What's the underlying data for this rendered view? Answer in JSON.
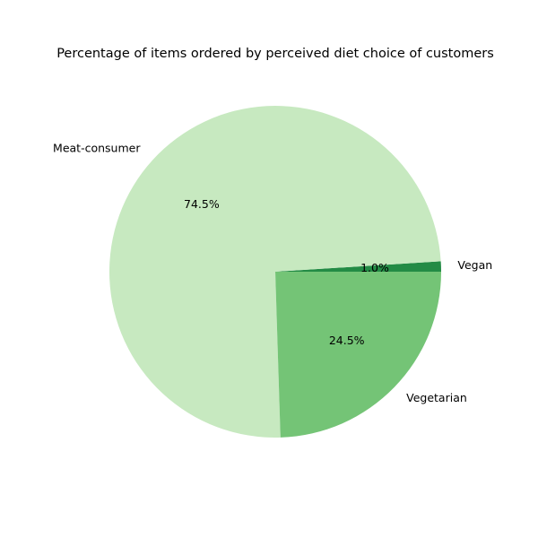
{
  "chart_data": {
    "type": "pie",
    "title": "Percentage of items ordered by perceived diet choice of customers",
    "start_angle_deg": 0,
    "direction": "counterclockwise",
    "slices": [
      {
        "label": "Vegan",
        "value": 1.0,
        "pct_label": "1.0%",
        "color": "#238b45"
      },
      {
        "label": "Meat-consumer",
        "value": 74.5,
        "pct_label": "74.5%",
        "color": "#c7e9c0"
      },
      {
        "label": "Vegetarian",
        "value": 24.5,
        "pct_label": "24.5%",
        "color": "#74c476"
      }
    ]
  }
}
